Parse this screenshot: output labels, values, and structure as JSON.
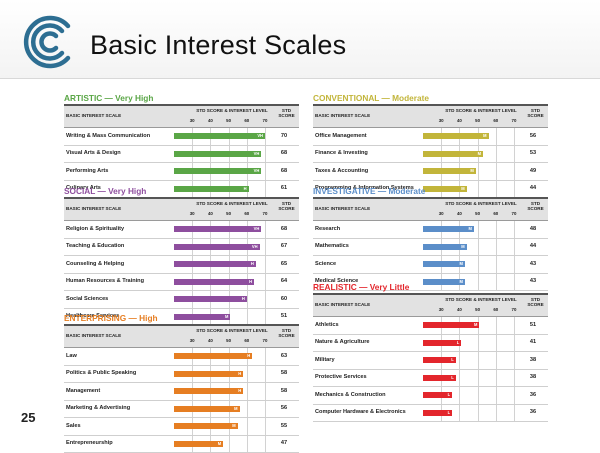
{
  "page": {
    "title": "Basic Interest Scales",
    "page_number": "25",
    "logo_icon": "concentric-circles-logo-icon"
  },
  "table_header": {
    "scale_label": "BASIC INTEREST SCALE",
    "std_level_label": "STD SCORE & INTEREST LEVEL",
    "std_score_label_1": "STD",
    "std_score_label_2": "SCORE",
    "ticks": [
      "30",
      "40",
      "50",
      "60",
      "70"
    ]
  },
  "sections": [
    {
      "title": "ARTISTIC — Very High",
      "color": "#5aa646",
      "rows": [
        {
          "label": "Writing & Mass Communication",
          "level": "VH",
          "score": "70"
        },
        {
          "label": "Visual Arts & Design",
          "level": "VH",
          "score": "68"
        },
        {
          "label": "Performing Arts",
          "level": "VH",
          "score": "68"
        },
        {
          "label": "Culinary Arts",
          "level": "H",
          "score": "61"
        }
      ]
    },
    {
      "title": "SOCIAL — Very High",
      "color": "#8e4e9e",
      "rows": [
        {
          "label": "Religion & Spirituality",
          "level": "VH",
          "score": "68"
        },
        {
          "label": "Teaching & Education",
          "level": "VH",
          "score": "67"
        },
        {
          "label": "Counseling & Helping",
          "level": "H",
          "score": "65"
        },
        {
          "label": "Human Resources & Training",
          "level": "H",
          "score": "64"
        },
        {
          "label": "Social Sciences",
          "level": "H",
          "score": "60"
        },
        {
          "label": "Healthcare Services",
          "level": "M",
          "score": "51"
        }
      ]
    },
    {
      "title": "ENTERPRISING — High",
      "color": "#e67e22",
      "rows": [
        {
          "label": "Law",
          "level": "H",
          "score": "63"
        },
        {
          "label": "Politics & Public Speaking",
          "level": "H",
          "score": "58"
        },
        {
          "label": "Management",
          "level": "H",
          "score": "58"
        },
        {
          "label": "Marketing & Advertising",
          "level": "M",
          "score": "56"
        },
        {
          "label": "Sales",
          "level": "M",
          "score": "55"
        },
        {
          "label": "Entrepreneurship",
          "level": "M",
          "score": "47"
        }
      ]
    },
    {
      "title": "CONVENTIONAL — Moderate",
      "color": "#c2b53a",
      "rows": [
        {
          "label": "Office Management",
          "level": "M",
          "score": "56"
        },
        {
          "label": "Finance & Investing",
          "level": "M",
          "score": "53"
        },
        {
          "label": "Taxes & Accounting",
          "level": "M",
          "score": "49"
        },
        {
          "label": "Programming & Information Systems",
          "level": "M",
          "score": "44"
        }
      ]
    },
    {
      "title": "INVESTIGATIVE — Moderate",
      "color": "#5b8ec9",
      "rows": [
        {
          "label": "Research",
          "level": "M",
          "score": "48"
        },
        {
          "label": "Mathematics",
          "level": "M",
          "score": "44"
        },
        {
          "label": "Science",
          "level": "M",
          "score": "43"
        },
        {
          "label": "Medical Science",
          "level": "M",
          "score": "43"
        }
      ]
    },
    {
      "title": "REALISTIC — Very Little",
      "color": "#e3262c",
      "rows": [
        {
          "label": "Athletics",
          "level": "M",
          "score": "51"
        },
        {
          "label": "Nature & Agriculture",
          "level": "L",
          "score": "41"
        },
        {
          "label": "Military",
          "level": "L",
          "score": "38"
        },
        {
          "label": "Protective Services",
          "level": "L",
          "score": "38"
        },
        {
          "label": "Mechanics & Construction",
          "level": "L",
          "score": "36"
        },
        {
          "label": "Computer Hardware & Electronics",
          "level": "L",
          "score": "36"
        }
      ]
    }
  ]
}
